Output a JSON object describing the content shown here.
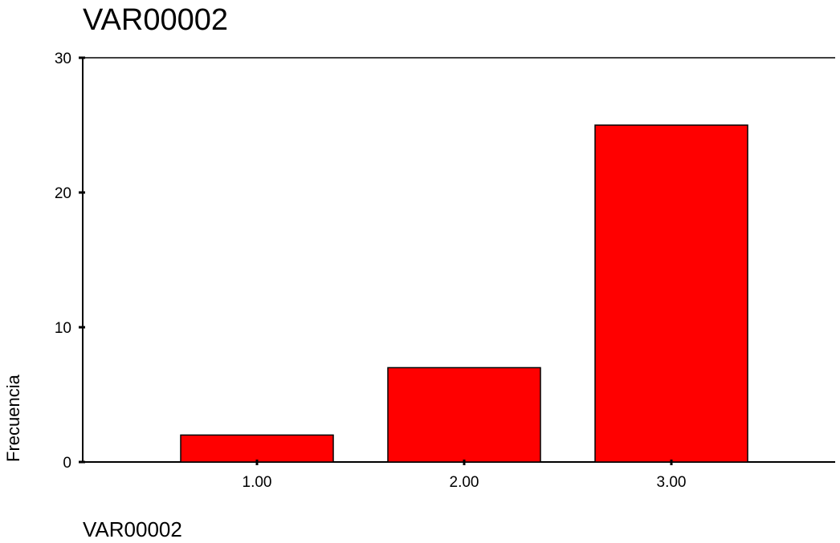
{
  "chart_data": {
    "type": "bar",
    "title": "VAR00002",
    "xlabel": "VAR00002",
    "ylabel": "Frecuencia",
    "categories": [
      "1.00",
      "2.00",
      "3.00"
    ],
    "values": [
      2,
      7,
      25
    ],
    "ylim": [
      0,
      30
    ],
    "yticks": [
      0,
      10,
      20,
      30
    ],
    "bar_color": "#ff0000",
    "grid": false
  }
}
